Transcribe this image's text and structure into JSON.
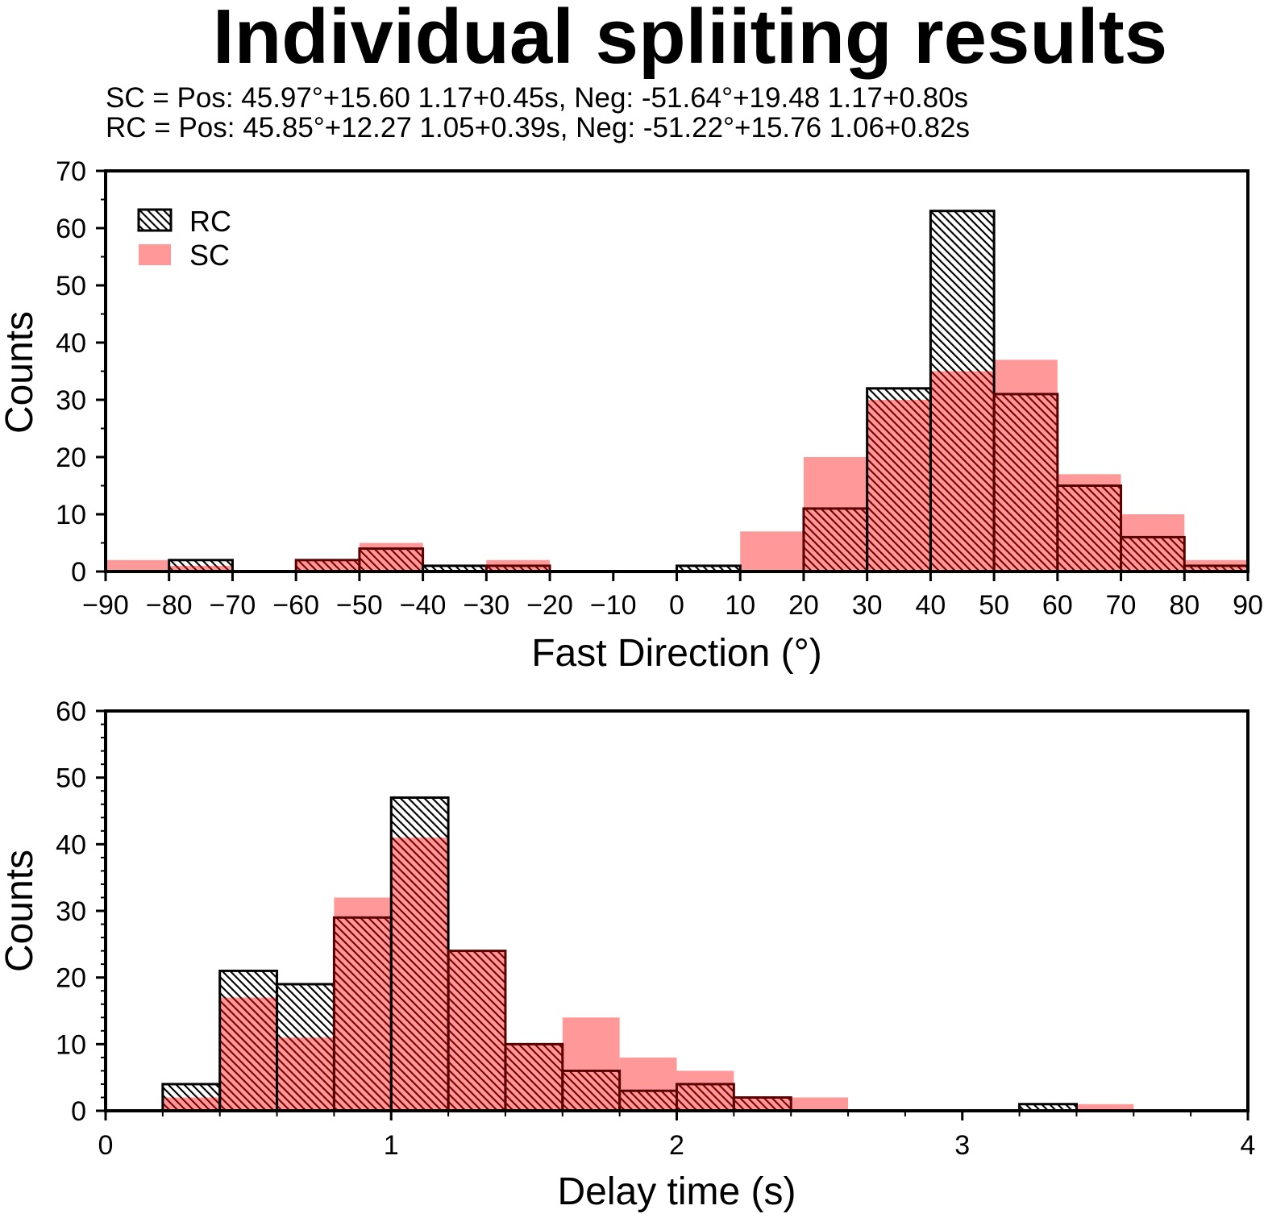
{
  "title": "Individual spliiting results",
  "subtitle_lines": [
    "SC = Pos: 45.97°+15.60 1.17+0.45s, Neg: -51.64°+19.48 1.17+0.80s",
    "RC = Pos: 45.85°+12.27 1.05+0.39s, Neg: -51.22°+15.76 1.06+0.82s"
  ],
  "colors": {
    "sc_fill": "#ff9999",
    "rc_hatch": "#000000",
    "sc_hatch_over": "#8b0000",
    "axis": "#000000"
  },
  "chart_data": [
    {
      "type": "bar",
      "name": "fast-direction-histogram",
      "xlabel": "Fast Direction (°)",
      "ylabel": "Counts",
      "xlim": [
        -90,
        90
      ],
      "ylim": [
        0,
        70
      ],
      "x_ticks": [
        -90,
        -80,
        -70,
        -60,
        -50,
        -40,
        -30,
        -20,
        -10,
        0,
        10,
        20,
        30,
        40,
        50,
        60,
        70,
        80,
        90
      ],
      "x_tick_labels": [
        "−90",
        "−80",
        "−70",
        "−60",
        "−50",
        "−40",
        "−30",
        "−20",
        "−10",
        "0",
        "10",
        "20",
        "30",
        "40",
        "50",
        "60",
        "70",
        "80",
        "90"
      ],
      "y_ticks": [
        0,
        10,
        20,
        30,
        40,
        50,
        60,
        70
      ],
      "bin_edges": [
        -90,
        -80,
        -70,
        -60,
        -50,
        -40,
        -30,
        -20,
        -10,
        0,
        10,
        20,
        30,
        40,
        50,
        60,
        70,
        80,
        90
      ],
      "legend_position": "top-left",
      "series": [
        {
          "name": "RC",
          "style": "hatched",
          "values": [
            0,
            2,
            0,
            2,
            4,
            1,
            1,
            0,
            0,
            1,
            0,
            11,
            32,
            63,
            31,
            15,
            6,
            1
          ]
        },
        {
          "name": "SC",
          "style": "filled",
          "values": [
            2,
            1,
            0,
            2,
            5,
            0,
            2,
            0,
            0,
            0,
            7,
            20,
            30,
            35,
            37,
            17,
            10,
            2
          ]
        }
      ]
    },
    {
      "type": "bar",
      "name": "delay-time-histogram",
      "xlabel": "Delay time (s)",
      "ylabel": "Counts",
      "xlim": [
        0,
        4
      ],
      "ylim": [
        0,
        60
      ],
      "x_ticks": [
        0,
        1,
        2,
        3,
        4
      ],
      "x_tick_labels": [
        "0",
        "1",
        "2",
        "3",
        "4"
      ],
      "y_ticks": [
        0,
        10,
        20,
        30,
        40,
        50,
        60
      ],
      "bin_edges": [
        0,
        0.2,
        0.4,
        0.6,
        0.8,
        1.0,
        1.2,
        1.4,
        1.6,
        1.8,
        2.0,
        2.2,
        2.4,
        2.6,
        2.8,
        3.0,
        3.2,
        3.4,
        3.6,
        3.8,
        4.0
      ],
      "series": [
        {
          "name": "RC",
          "style": "hatched",
          "values": [
            0,
            4,
            21,
            19,
            29,
            47,
            24,
            10,
            6,
            3,
            4,
            2,
            0,
            0,
            0,
            0,
            1,
            0,
            0,
            0
          ]
        },
        {
          "name": "SC",
          "style": "filled",
          "values": [
            0,
            2,
            17,
            11,
            32,
            41,
            24,
            10,
            14,
            8,
            6,
            2,
            2,
            0,
            0,
            0,
            0,
            1,
            0,
            0
          ]
        }
      ]
    }
  ]
}
